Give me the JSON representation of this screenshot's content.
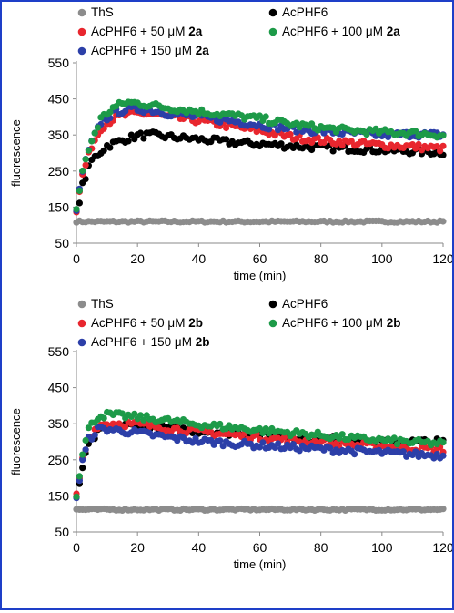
{
  "chart_data": [
    {
      "type": "scatter",
      "title": "",
      "xlabel": "time (min)",
      "ylabel": "fluorescence",
      "xlim": [
        0,
        120
      ],
      "ylim": [
        50,
        550
      ],
      "xticks": [
        "0",
        "20",
        "40",
        "60",
        "80",
        "100",
        "120"
      ],
      "yticks": [
        "50",
        "150",
        "250",
        "350",
        "450",
        "550"
      ],
      "grid": false,
      "legend_position": "top",
      "colors": {
        "ths": "#8c8c8c",
        "acphf6": "#000000",
        "c50": "#e8262e",
        "c100": "#1d9a48",
        "c150": "#2c3fa8"
      },
      "series": [
        {
          "key": "ths",
          "name": "ThS",
          "compound": "",
          "x": [
            0,
            10,
            20,
            40,
            60,
            80,
            100,
            120
          ],
          "y": [
            110,
            110,
            110,
            110,
            110,
            110,
            110,
            110
          ]
        },
        {
          "key": "acphf6",
          "name": "AcPHF6",
          "compound": "",
          "x": [
            0,
            2,
            5,
            10,
            15,
            20,
            25,
            30,
            40,
            50,
            60,
            70,
            80,
            90,
            100,
            110,
            120
          ],
          "y": [
            130,
            210,
            280,
            320,
            335,
            348,
            350,
            345,
            338,
            330,
            325,
            320,
            315,
            312,
            308,
            305,
            302
          ]
        },
        {
          "key": "c50",
          "name": "AcPHF6 + 50 μM ",
          "compound": "2a",
          "x": [
            0,
            2,
            5,
            8,
            12,
            16,
            20,
            25,
            30,
            40,
            50,
            60,
            70,
            80,
            90,
            100,
            110,
            120
          ],
          "y": [
            140,
            240,
            320,
            370,
            395,
            405,
            410,
            408,
            400,
            390,
            375,
            362,
            345,
            335,
            328,
            322,
            318,
            312
          ]
        },
        {
          "key": "c100",
          "name": "AcPHF6 + 100 μM ",
          "compound": "2a",
          "x": [
            0,
            2,
            5,
            8,
            12,
            16,
            20,
            25,
            30,
            40,
            50,
            60,
            70,
            80,
            90,
            100,
            110,
            120
          ],
          "y": [
            145,
            250,
            335,
            395,
            425,
            440,
            438,
            432,
            425,
            415,
            405,
            395,
            380,
            370,
            362,
            358,
            355,
            350
          ]
        },
        {
          "key": "c150",
          "name": "AcPHF6 + 150 μM ",
          "compound": "2a",
          "x": [
            0,
            2,
            5,
            8,
            12,
            16,
            20,
            25,
            30,
            40,
            50,
            60,
            70,
            80,
            90,
            100,
            110,
            120
          ],
          "y": [
            140,
            250,
            330,
            385,
            410,
            420,
            422,
            418,
            410,
            400,
            390,
            378,
            368,
            360,
            355,
            350,
            352,
            350
          ]
        }
      ]
    },
    {
      "type": "scatter",
      "title": "",
      "xlabel": "time (min)",
      "ylabel": "fluorescence",
      "xlim": [
        0,
        120
      ],
      "ylim": [
        50,
        550
      ],
      "xticks": [
        "0",
        "20",
        "40",
        "60",
        "80",
        "100",
        "120"
      ],
      "yticks": [
        "50",
        "150",
        "250",
        "350",
        "450",
        "550"
      ],
      "grid": false,
      "legend_position": "top",
      "colors": {
        "ths": "#8c8c8c",
        "acphf6": "#000000",
        "c50": "#e8262e",
        "c100": "#1d9a48",
        "c150": "#2c3fa8"
      },
      "series": [
        {
          "key": "ths",
          "name": "ThS",
          "compound": "",
          "x": [
            0,
            10,
            20,
            40,
            60,
            80,
            100,
            120
          ],
          "y": [
            112,
            112,
            112,
            112,
            112,
            112,
            112,
            112
          ]
        },
        {
          "key": "acphf6",
          "name": "AcPHF6",
          "compound": "",
          "x": [
            0,
            2,
            4,
            7,
            10,
            15,
            20,
            30,
            40,
            50,
            60,
            70,
            80,
            90,
            100,
            110,
            120
          ],
          "y": [
            140,
            230,
            290,
            325,
            340,
            345,
            345,
            338,
            330,
            325,
            320,
            315,
            310,
            305,
            300,
            300,
            300
          ]
        },
        {
          "key": "c50",
          "name": "AcPHF6 + 50 μM ",
          "compound": "2b",
          "x": [
            0,
            2,
            4,
            7,
            10,
            15,
            20,
            30,
            40,
            50,
            60,
            70,
            80,
            90,
            100,
            110,
            120
          ],
          "y": [
            150,
            250,
            310,
            345,
            350,
            350,
            348,
            338,
            328,
            320,
            312,
            305,
            298,
            292,
            288,
            282,
            278
          ]
        },
        {
          "key": "c100",
          "name": "AcPHF6 + 100 μM ",
          "compound": "2b",
          "x": [
            0,
            2,
            4,
            7,
            10,
            15,
            20,
            30,
            40,
            50,
            60,
            70,
            80,
            90,
            100,
            110,
            120
          ],
          "y": [
            155,
            270,
            335,
            370,
            375,
            372,
            368,
            358,
            348,
            340,
            332,
            325,
            318,
            310,
            304,
            298,
            295
          ]
        },
        {
          "key": "c150",
          "name": "AcPHF6 + 150 μM ",
          "compound": "2b",
          "x": [
            0,
            2,
            4,
            7,
            10,
            15,
            20,
            30,
            40,
            50,
            60,
            70,
            80,
            90,
            100,
            110,
            120
          ],
          "y": [
            145,
            245,
            305,
            335,
            335,
            330,
            325,
            312,
            302,
            296,
            290,
            285,
            280,
            275,
            270,
            265,
            262
          ]
        }
      ]
    }
  ]
}
